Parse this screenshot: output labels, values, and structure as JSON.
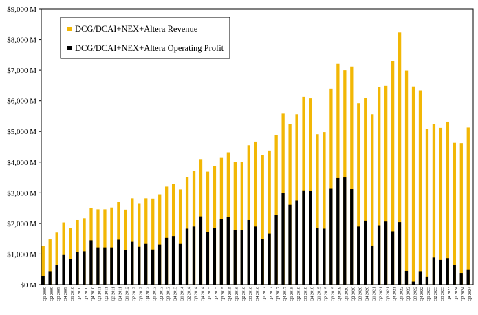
{
  "chart_data": {
    "type": "bar",
    "ylim": [
      0,
      9000
    ],
    "y_ticks": [
      "$0 M",
      "$1,000 M",
      "$2,000 M",
      "$3,000 M",
      "$4,000 M",
      "$5,000 M",
      "$6,000 M",
      "$7,000 M",
      "$8,000 M",
      "$9,000 M"
    ],
    "y_tick_values": [
      0,
      1000,
      2000,
      3000,
      4000,
      5000,
      6000,
      7000,
      8000,
      9000
    ],
    "grid": false,
    "legend_position": "top-left",
    "categories": [
      "Q1 2009",
      "Q2 2009",
      "Q3 2009",
      "Q4 2009",
      "Q1 2010",
      "Q2 2010",
      "Q3 2010",
      "Q4 2010",
      "Q1 2011",
      "Q2 2011",
      "Q3 2011",
      "Q4 2011",
      "Q1 2012",
      "Q2 2012",
      "Q3 2012",
      "Q4 2012",
      "Q1 2013",
      "Q2 2013",
      "Q3 2013",
      "Q4 2013",
      "Q1 2014",
      "Q2 2014",
      "Q3 2014",
      "Q4 2014",
      "Q1 2015",
      "Q2 2015",
      "Q3 2015",
      "Q4 2015",
      "Q1 2016",
      "Q2 2016",
      "Q3 2016",
      "Q4 2016",
      "Q1 2017",
      "Q2 2017",
      "Q3 2017",
      "Q4 2017",
      "Q1 2018",
      "Q2 2018",
      "Q3 2018",
      "Q4 2018",
      "Q1 2019",
      "Q2 2019",
      "Q3 2019",
      "Q4 2019",
      "Q1 2020",
      "Q2 2020",
      "Q3 2020",
      "Q4 2020",
      "Q1 2021",
      "Q2 2021",
      "Q3 2021",
      "Q4 2021",
      "Q1 2022",
      "Q2 2022",
      "Q3 2022",
      "Q4 2022",
      "Q1 2023",
      "Q2 2023",
      "Q3 2023",
      "Q4 2023",
      "Q1 2024",
      "Q2 2024",
      "Q3 2024"
    ],
    "series": [
      {
        "name": "DCG/DCAI+NEX+Altera Revenue",
        "color": "#F2B705",
        "values": [
          1270,
          1480,
          1700,
          2030,
          1860,
          2110,
          2170,
          2510,
          2460,
          2460,
          2520,
          2710,
          2450,
          2820,
          2660,
          2820,
          2810,
          2950,
          3200,
          3290,
          3110,
          3520,
          3710,
          4100,
          3690,
          3870,
          4160,
          4320,
          4000,
          4010,
          4550,
          4670,
          4240,
          4380,
          4890,
          5580,
          5230,
          5560,
          6130,
          6080,
          4910,
          4980,
          6400,
          7210,
          7000,
          7120,
          5920,
          6090,
          5560,
          6450,
          6490,
          7300,
          8230,
          6990,
          6470,
          6340,
          5080,
          5230,
          5120,
          5320,
          4630,
          4620,
          5130
        ]
      },
      {
        "name": "DCG/DCAI+NEX+Altera Operating Profit",
        "color": "#000000",
        "values": [
          280,
          440,
          630,
          970,
          850,
          1060,
          1090,
          1450,
          1220,
          1220,
          1220,
          1470,
          1140,
          1400,
          1240,
          1330,
          1150,
          1310,
          1530,
          1590,
          1330,
          1830,
          1900,
          2230,
          1720,
          1840,
          2140,
          2200,
          1780,
          1780,
          2110,
          1900,
          1490,
          1670,
          2280,
          3000,
          2610,
          2750,
          3080,
          3060,
          1840,
          1830,
          3130,
          3480,
          3500,
          3120,
          1900,
          2090,
          1280,
          1940,
          2060,
          1740,
          2040,
          450,
          100,
          440,
          250,
          890,
          810,
          870,
          640,
          380,
          500
        ]
      }
    ]
  }
}
